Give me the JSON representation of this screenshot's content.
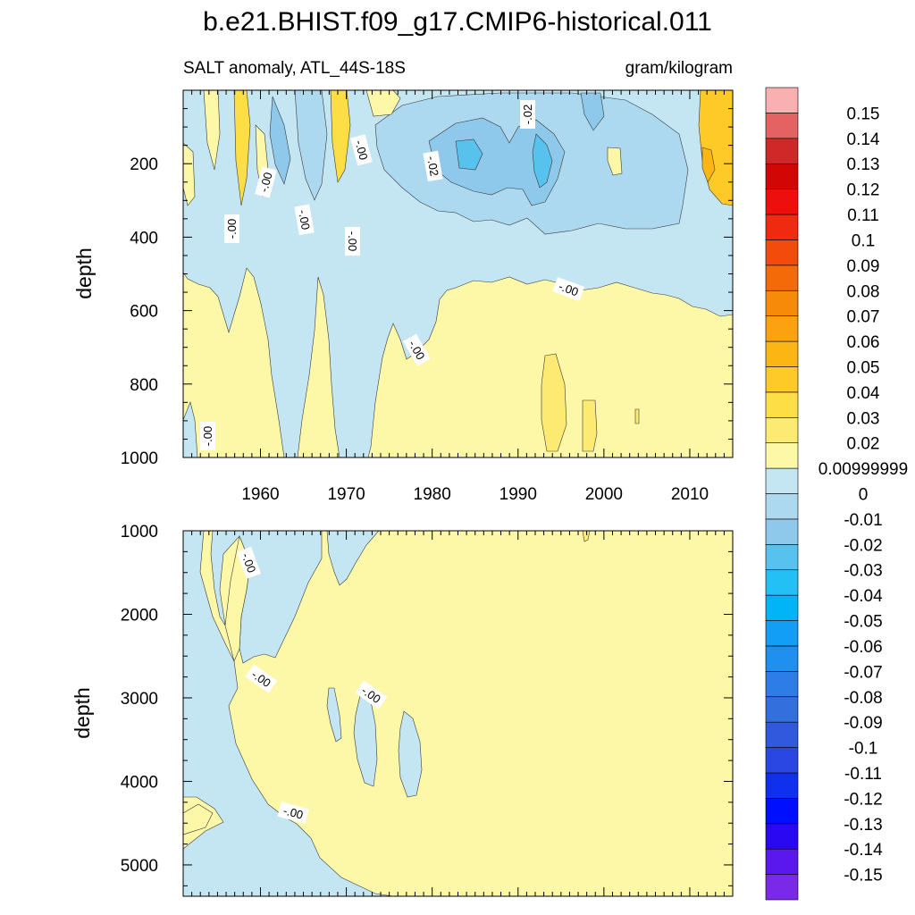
{
  "chart_data": {
    "type": "heatmap",
    "title": "b.e21.BHIST.f09_g17.CMIP6-historical.011",
    "subtitle_left": "SALT anomaly, ATL_44S-18S",
    "subtitle_right": "gram/kilogram",
    "ylabel": "depth",
    "x_ticks": [
      "1960",
      "1970",
      "1980",
      "1990",
      "2000",
      "2010"
    ],
    "x_range": [
      1951,
      2015
    ],
    "panels": [
      {
        "name": "upper",
        "ylim": [
          0,
          1000
        ],
        "y_ticks": [
          "200",
          "400",
          "600",
          "800",
          "1000"
        ],
        "contour_labels": [
          "-.00",
          "-.00",
          "-.00",
          "-.00",
          "-.00",
          "-.00",
          "-.00",
          "-.00",
          "-.02",
          "-.02"
        ]
      },
      {
        "name": "lower",
        "ylim": [
          1000,
          5375
        ],
        "y_ticks": [
          "1000",
          "2000",
          "3000",
          "4000",
          "5000"
        ],
        "contour_labels": [
          "-.00",
          "-.00",
          "-.00",
          "-.00"
        ]
      }
    ],
    "colorbar": {
      "labels": [
        "0.15",
        "0.14",
        "0.13",
        "0.12",
        "0.11",
        "0.1",
        "0.09",
        "0.08",
        "0.07",
        "0.06",
        "0.05",
        "0.04",
        "0.03",
        "0.02",
        "0.00999999",
        "0",
        "-0.01",
        "-0.02",
        "-0.03",
        "-0.04",
        "-0.05",
        "-0.06",
        "-0.07",
        "-0.08",
        "-0.09",
        "-0.1",
        "-0.11",
        "-0.12",
        "-0.13",
        "-0.14",
        "-0.15"
      ],
      "colors": [
        "#7a29e8",
        "#5a17ee",
        "#2a08f2",
        "#0010ff",
        "#1030f0",
        "#2a47e3",
        "#3159dd",
        "#346fde",
        "#2e7ce8",
        "#1f8ff0",
        "#129ef7",
        "#00b4f7",
        "#22c0f5",
        "#58c2ee",
        "#8ec8ea",
        "#acd9ef",
        "#c4e6f3",
        "#fdf7a8",
        "#fcea72",
        "#fdde45",
        "#fdca27",
        "#fcb614",
        "#fba20e",
        "#f88a0a",
        "#f46a08",
        "#f24b0c",
        "#f02a10",
        "#ee0e0e",
        "#d30606",
        "#d02828",
        "#e46262",
        "#f8b0b0"
      ]
    }
  }
}
